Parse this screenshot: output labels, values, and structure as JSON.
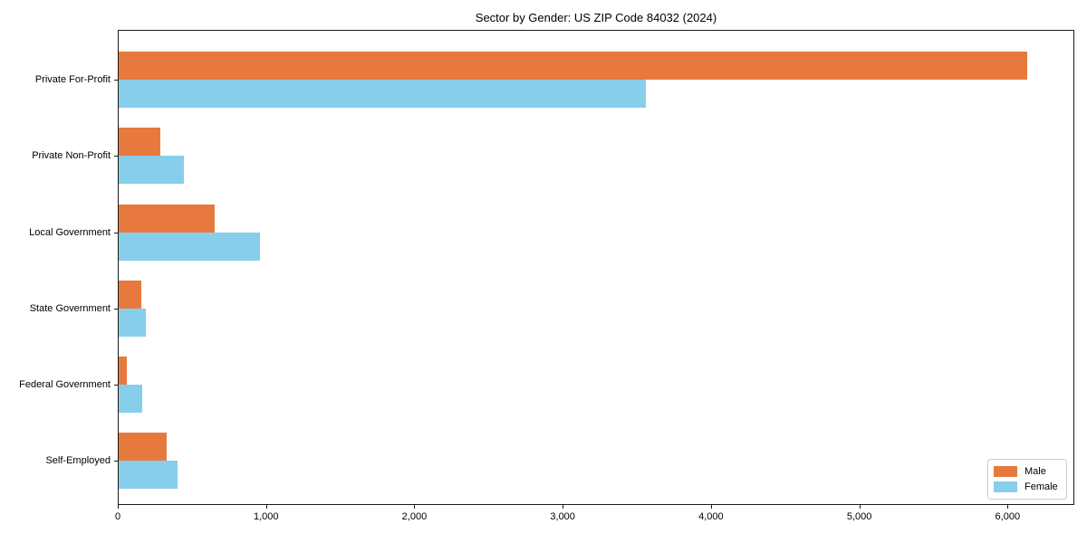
{
  "chart_data": {
    "type": "bar",
    "orientation": "horizontal",
    "title": "Sector by Gender: US ZIP Code 84032 (2024)",
    "categories": [
      "Private For-Profit",
      "Private Non-Profit",
      "Local Government",
      "State Government",
      "Federal Government",
      "Self-Employed"
    ],
    "series": [
      {
        "name": "Male",
        "color": "#e8793e",
        "values": [
          6134,
          285,
          653,
          159,
          59,
          332
        ]
      },
      {
        "name": "Female",
        "color": "#87ceeb",
        "values": [
          3559,
          444,
          958,
          187,
          165,
          401
        ]
      }
    ],
    "xlabel": "",
    "ylabel": "",
    "xlim": [
      0,
      6450
    ],
    "x_ticks": [
      0,
      1000,
      2000,
      3000,
      4000,
      5000,
      6000
    ],
    "x_tick_labels": [
      "0",
      "1,000",
      "2,000",
      "3,000",
      "4,000",
      "5,000",
      "6,000"
    ],
    "grid": false,
    "legend_position": "lower right",
    "spine_color": "#1a1a1a",
    "background_color": "#ffffff"
  }
}
